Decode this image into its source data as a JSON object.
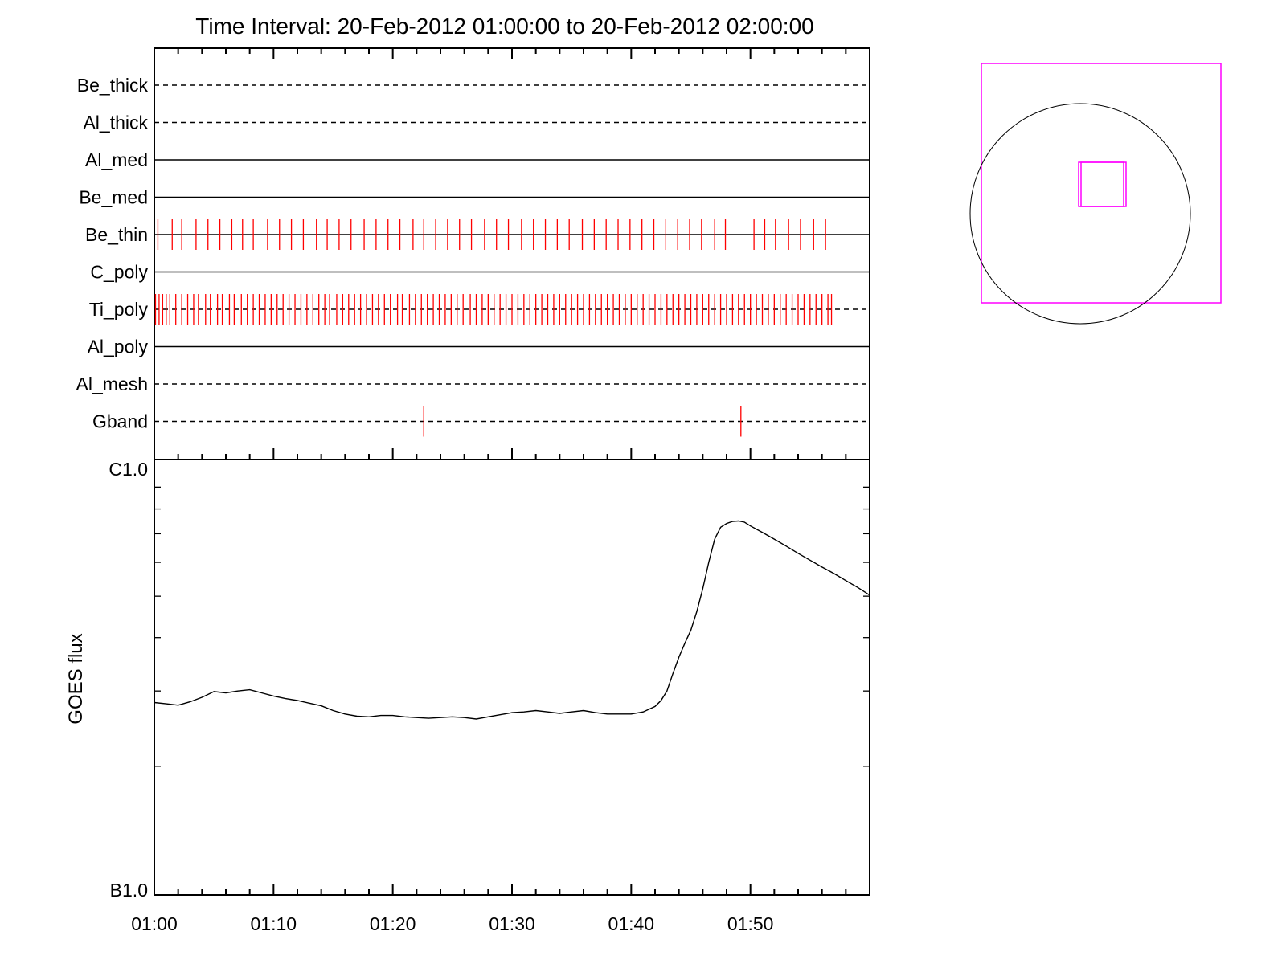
{
  "chart_data": [
    {
      "type": "timeline",
      "title": "Time Interval: 20-Feb-2012 01:00:00 to 20-Feb-2012 02:00:00",
      "x_range": [
        "01:00",
        "02:00"
      ],
      "colors": {
        "axis": "#000000",
        "events": "#ff0000"
      },
      "rows": [
        {
          "label": "Be_thick",
          "style": "dashed",
          "events": []
        },
        {
          "label": "Al_thick",
          "style": "dashed",
          "events": []
        },
        {
          "label": "Al_med",
          "style": "solid",
          "events": []
        },
        {
          "label": "Be_med",
          "style": "solid",
          "events": []
        },
        {
          "label": "Be_thin",
          "style": "solid",
          "events": [
            "01:00.3",
            "01:01.5",
            "01:02.3",
            "01:03.5",
            "01:04.5",
            "01:05.5",
            "01:06.5",
            "01:07.4",
            "01:08.3",
            "01:09.5",
            "01:10.5",
            "01:11.5",
            "01:12.5",
            "01:13.6",
            "01:14.5",
            "01:15.5",
            "01:16.5",
            "01:17.6",
            "01:18.6",
            "01:19.6",
            "01:20.6",
            "01:21.7",
            "01:22.6",
            "01:23.6",
            "01:24.6",
            "01:25.6",
            "01:26.6",
            "01:27.7",
            "01:28.7",
            "01:29.7",
            "01:30.8",
            "01:31.8",
            "01:32.8",
            "01:33.8",
            "01:34.8",
            "01:35.9",
            "01:36.9",
            "01:37.9",
            "01:38.9",
            "01:39.9",
            "01:40.9",
            "01:41.9",
            "01:42.9",
            "01:43.9",
            "01:44.9",
            "01:45.9",
            "01:47.0",
            "01:47.9",
            "01:50.3",
            "01:51.2",
            "01:52.1",
            "01:53.2",
            "01:54.2",
            "01:55.3",
            "01:56.3"
          ]
        },
        {
          "label": "C_poly",
          "style": "solid",
          "events": []
        },
        {
          "label": "Ti_poly",
          "style": "dashed",
          "events": [
            "01:00.1",
            "01:00.4",
            "01:00.7",
            "01:01.0",
            "01:01.3",
            "01:01.8",
            "01:02.3",
            "01:02.8",
            "01:03.3",
            "01:03.7",
            "01:04.3",
            "01:04.7",
            "01:05.3",
            "01:05.7",
            "01:06.3",
            "01:06.7",
            "01:07.3",
            "01:07.8",
            "01:08.3",
            "01:08.8",
            "01:09.3",
            "01:09.8",
            "01:10.3",
            "01:10.8",
            "01:11.3",
            "01:11.8",
            "01:12.3",
            "01:12.8",
            "01:13.3",
            "01:13.8",
            "01:14.3",
            "01:14.7",
            "01:15.3",
            "01:15.8",
            "01:16.3",
            "01:16.8",
            "01:17.3",
            "01:17.8",
            "01:18.3",
            "01:18.8",
            "01:19.3",
            "01:19.8",
            "01:20.4",
            "01:20.8",
            "01:21.4",
            "01:21.9",
            "01:22.4",
            "01:22.9",
            "01:23.4",
            "01:23.9",
            "01:24.4",
            "01:24.9",
            "01:25.4",
            "01:25.9",
            "01:26.5",
            "01:27.0",
            "01:27.5",
            "01:28.0",
            "01:28.5",
            "01:29.0",
            "01:29.5",
            "01:30.0",
            "01:30.5",
            "01:31.0",
            "01:31.5",
            "01:32.0",
            "01:32.5",
            "01:33.0",
            "01:33.5",
            "01:34.0",
            "01:34.5",
            "01:35.0",
            "01:35.5",
            "01:36.0",
            "01:36.5",
            "01:37.0",
            "01:37.5",
            "01:38.0",
            "01:38.5",
            "01:39.0",
            "01:39.5",
            "01:40.0",
            "01:40.5",
            "01:41.0",
            "01:41.5",
            "01:42.0",
            "01:42.5",
            "01:43.0",
            "01:43.5",
            "01:44.0",
            "01:44.5",
            "01:45.0",
            "01:45.5",
            "01:46.0",
            "01:46.5",
            "01:47.0",
            "01:47.5",
            "01:48.0",
            "01:48.5",
            "01:49.0",
            "01:49.5",
            "01:50.0",
            "01:50.5",
            "01:51.0",
            "01:51.5",
            "01:52.0",
            "01:52.5",
            "01:53.0",
            "01:53.5",
            "01:54.0",
            "01:54.5",
            "01:55.0",
            "01:55.5",
            "01:56.0",
            "01:56.5",
            "01:56.8"
          ]
        },
        {
          "label": "Al_poly",
          "style": "solid",
          "events": []
        },
        {
          "label": "Al_mesh",
          "style": "dashed",
          "events": []
        },
        {
          "label": "Gband",
          "style": "dashed",
          "events": [
            "01:22.6",
            "01:49.2"
          ]
        }
      ]
    },
    {
      "type": "line",
      "ylabel": "GOES flux",
      "x_ticks": [
        "01:00",
        "01:10",
        "01:20",
        "01:30",
        "01:40",
        "01:50"
      ],
      "y_tick_labels": [
        "C1.0",
        "B1.0"
      ],
      "yscale": "log",
      "ylim": [
        1e-07,
        1e-06
      ],
      "xlim_minutes": [
        0,
        60
      ],
      "line_color": "#000000",
      "series": [
        {
          "x_minutes": [
            0,
            1,
            2,
            3,
            4,
            5,
            6,
            7,
            8,
            9,
            10,
            11,
            12,
            13,
            14,
            15,
            16,
            17,
            18,
            19,
            20,
            21,
            22,
            23,
            24,
            25,
            26,
            27,
            28,
            29,
            30,
            31,
            32,
            33,
            34,
            35,
            36,
            37,
            38,
            39,
            40,
            41,
            42,
            42.5,
            43,
            43.5,
            44,
            44.5,
            45,
            45.5,
            46,
            46.5,
            47,
            47.5,
            48,
            48.5,
            49,
            49.5,
            50,
            51,
            52,
            53,
            54,
            55,
            56,
            57,
            58,
            59,
            60
          ],
          "values": [
            2.82e-07,
            2.8e-07,
            2.78e-07,
            2.83e-07,
            2.9e-07,
            2.99e-07,
            2.97e-07,
            3e-07,
            3.02e-07,
            2.97e-07,
            2.92e-07,
            2.88e-07,
            2.85e-07,
            2.81e-07,
            2.77e-07,
            2.7e-07,
            2.65e-07,
            2.62e-07,
            2.61e-07,
            2.63e-07,
            2.63e-07,
            2.61e-07,
            2.6e-07,
            2.59e-07,
            2.6e-07,
            2.61e-07,
            2.6e-07,
            2.58e-07,
            2.61e-07,
            2.64e-07,
            2.67e-07,
            2.68e-07,
            2.7e-07,
            2.68e-07,
            2.66e-07,
            2.68e-07,
            2.7e-07,
            2.67e-07,
            2.65e-07,
            2.65e-07,
            2.65e-07,
            2.68e-07,
            2.76e-07,
            2.85e-07,
            3e-07,
            3.3e-07,
            3.6e-07,
            3.88e-07,
            4.16e-07,
            4.6e-07,
            5.2e-07,
            6e-07,
            6.8e-07,
            7.25e-07,
            7.4e-07,
            7.48e-07,
            7.5e-07,
            7.45e-07,
            7.3e-07,
            7.05e-07,
            6.8e-07,
            6.55e-07,
            6.3e-07,
            6.07e-07,
            5.85e-07,
            5.65e-07,
            5.44e-07,
            5.24e-07,
            5.03e-07
          ]
        }
      ]
    },
    {
      "type": "diagram",
      "description_colors": {
        "circle": "#000000",
        "boxes": "#ff00ff"
      }
    }
  ]
}
